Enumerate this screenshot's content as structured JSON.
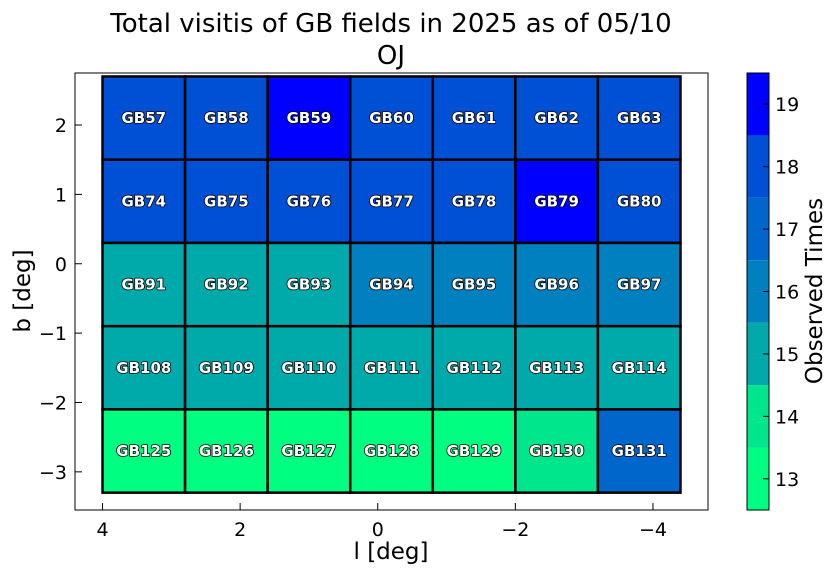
{
  "chart_data": {
    "type": "heatmap",
    "title": "Total visitis of GB fields in 2025 as of 05/10",
    "subtitle": "OJ",
    "xlabel": "l [deg]",
    "ylabel": "b [deg]",
    "xlim": [
      4.4,
      -4.8
    ],
    "ylim": [
      -3.55,
      2.75
    ],
    "x_ticks": [
      4,
      2,
      0,
      -2,
      -4
    ],
    "x_tick_labels": [
      "4",
      "2",
      "0",
      "−2",
      "−4"
    ],
    "y_ticks": [
      2,
      1,
      0,
      -1,
      -2,
      -3
    ],
    "y_tick_labels": [
      "2",
      "1",
      "0",
      "−1",
      "−2",
      "−3"
    ],
    "colorbar": {
      "label": "Observed Times",
      "range": [
        12.5,
        19.5
      ],
      "ticks": [
        13,
        14,
        15,
        16,
        17,
        18,
        19
      ],
      "levels": [
        {
          "from": 12.5,
          "to": 13.5,
          "color": "#00ff80"
        },
        {
          "from": 13.5,
          "to": 14.5,
          "color": "#00e68c"
        },
        {
          "from": 14.5,
          "to": 15.5,
          "color": "#00aaaa"
        },
        {
          "from": 15.5,
          "to": 16.5,
          "color": "#0080be"
        },
        {
          "from": 16.5,
          "to": 17.5,
          "color": "#0066cc"
        },
        {
          "from": 17.5,
          "to": 18.5,
          "color": "#0050d6"
        },
        {
          "from": 18.5,
          "to": 19.5,
          "color": "#0000ff"
        }
      ]
    },
    "grid": false,
    "columns_l": [
      3.4,
      2.2,
      1.0,
      -0.2,
      -1.4,
      -2.6,
      -3.8
    ],
    "rows_b": [
      2.1,
      0.9,
      -0.3,
      -1.5,
      -2.7
    ],
    "cell_width_deg": 1.2,
    "cell_height_deg": 1.2,
    "fields": [
      {
        "name": "GB57",
        "row": 0,
        "col": 0,
        "value": 18
      },
      {
        "name": "GB58",
        "row": 0,
        "col": 1,
        "value": 18
      },
      {
        "name": "GB59",
        "row": 0,
        "col": 2,
        "value": 19
      },
      {
        "name": "GB60",
        "row": 0,
        "col": 3,
        "value": 18
      },
      {
        "name": "GB61",
        "row": 0,
        "col": 4,
        "value": 18
      },
      {
        "name": "GB62",
        "row": 0,
        "col": 5,
        "value": 18
      },
      {
        "name": "GB63",
        "row": 0,
        "col": 6,
        "value": 18
      },
      {
        "name": "GB74",
        "row": 1,
        "col": 0,
        "value": 18
      },
      {
        "name": "GB75",
        "row": 1,
        "col": 1,
        "value": 18
      },
      {
        "name": "GB76",
        "row": 1,
        "col": 2,
        "value": 18
      },
      {
        "name": "GB77",
        "row": 1,
        "col": 3,
        "value": 18
      },
      {
        "name": "GB78",
        "row": 1,
        "col": 4,
        "value": 18
      },
      {
        "name": "GB79",
        "row": 1,
        "col": 5,
        "value": 19
      },
      {
        "name": "GB80",
        "row": 1,
        "col": 6,
        "value": 18
      },
      {
        "name": "GB91",
        "row": 2,
        "col": 0,
        "value": 15
      },
      {
        "name": "GB92",
        "row": 2,
        "col": 1,
        "value": 15
      },
      {
        "name": "GB93",
        "row": 2,
        "col": 2,
        "value": 15
      },
      {
        "name": "GB94",
        "row": 2,
        "col": 3,
        "value": 16
      },
      {
        "name": "GB95",
        "row": 2,
        "col": 4,
        "value": 16
      },
      {
        "name": "GB96",
        "row": 2,
        "col": 5,
        "value": 16
      },
      {
        "name": "GB97",
        "row": 2,
        "col": 6,
        "value": 16
      },
      {
        "name": "GB108",
        "row": 3,
        "col": 0,
        "value": 15
      },
      {
        "name": "GB109",
        "row": 3,
        "col": 1,
        "value": 15
      },
      {
        "name": "GB110",
        "row": 3,
        "col": 2,
        "value": 15
      },
      {
        "name": "GB111",
        "row": 3,
        "col": 3,
        "value": 15
      },
      {
        "name": "GB112",
        "row": 3,
        "col": 4,
        "value": 15
      },
      {
        "name": "GB113",
        "row": 3,
        "col": 5,
        "value": 15
      },
      {
        "name": "GB114",
        "row": 3,
        "col": 6,
        "value": 15
      },
      {
        "name": "GB125",
        "row": 4,
        "col": 0,
        "value": 13
      },
      {
        "name": "GB126",
        "row": 4,
        "col": 1,
        "value": 13
      },
      {
        "name": "GB127",
        "row": 4,
        "col": 2,
        "value": 13
      },
      {
        "name": "GB128",
        "row": 4,
        "col": 3,
        "value": 13
      },
      {
        "name": "GB129",
        "row": 4,
        "col": 4,
        "value": 13
      },
      {
        "name": "GB130",
        "row": 4,
        "col": 5,
        "value": 14
      },
      {
        "name": "GB131",
        "row": 4,
        "col": 6,
        "value": 17
      }
    ]
  }
}
